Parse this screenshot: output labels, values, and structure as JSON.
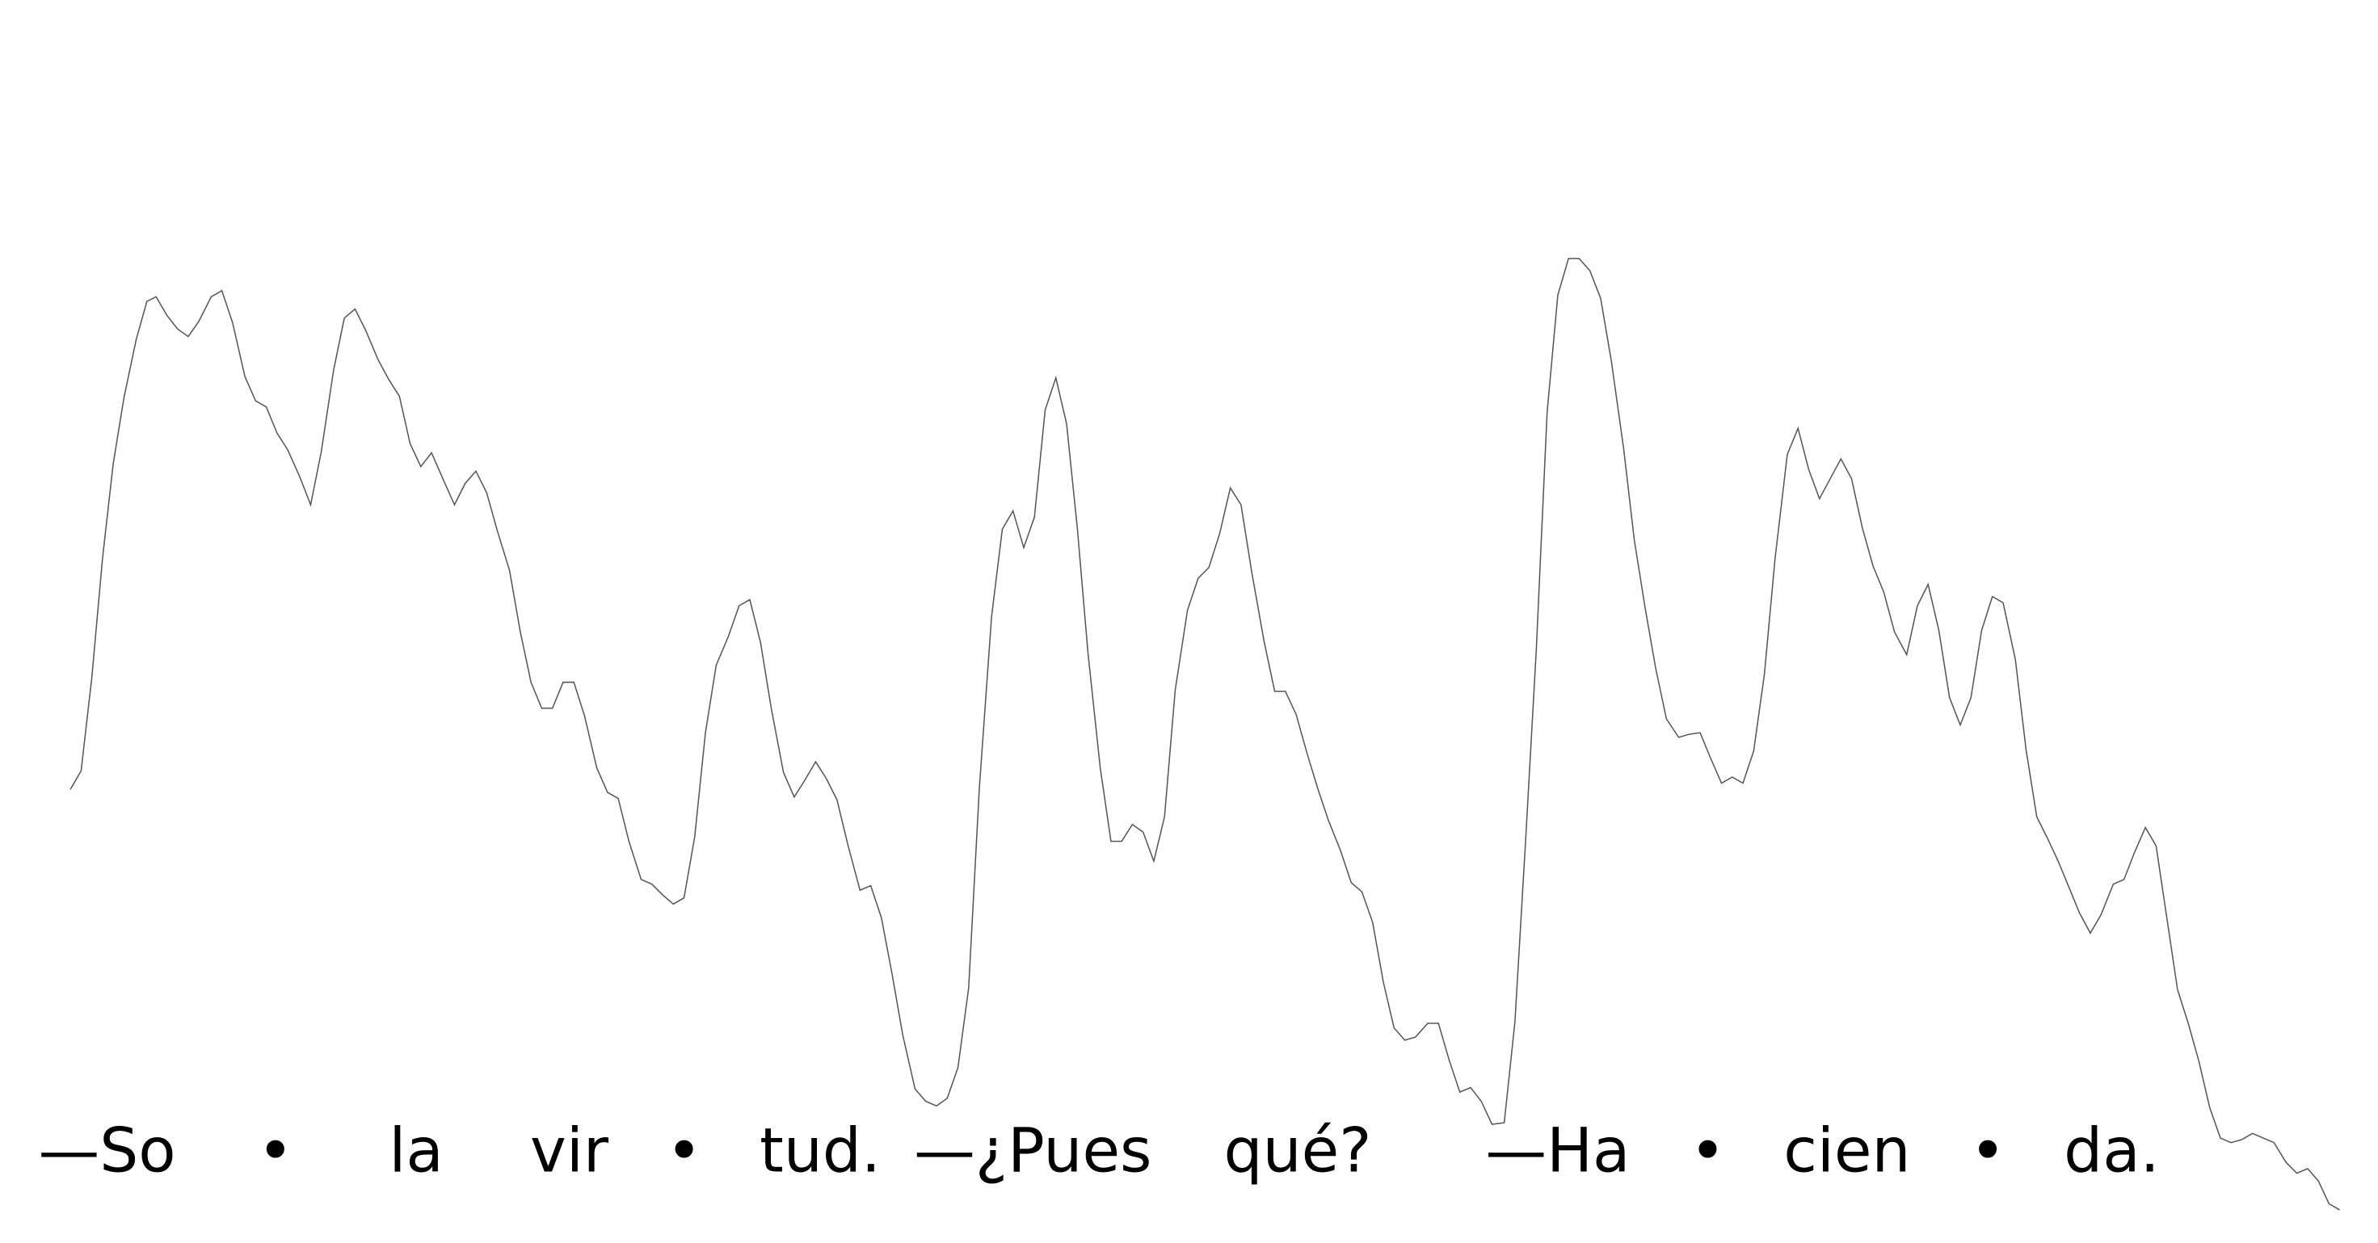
{
  "chart_data": {
    "type": "line",
    "color": "#555555",
    "syllables": [
      "—So",
      "•",
      "la",
      "vir",
      "•",
      "tud.",
      "—¿Pues",
      "qué?",
      "—Ha",
      "•",
      "cien",
      "•",
      "da."
    ],
    "x": [
      46,
      53,
      60,
      67,
      74,
      81,
      89,
      96,
      102,
      109,
      116,
      123,
      130,
      138,
      145,
      152,
      160,
      167,
      174,
      181,
      188,
      196,
      203,
      210,
      218,
      225,
      232,
      239,
      247,
      254,
      261,
      268,
      275,
      282,
      289,
      297,
      304,
      311,
      318,
      325,
      333,
      340,
      347,
      354,
      361,
      368,
      375,
      382,
      390,
      397,
      404,
      411,
      419,
      426,
      433,
      440,
      447,
      454,
      461,
      468,
      476,
      483,
      490,
      497,
      504,
      512,
      519,
      526,
      533,
      540,
      547,
      554,
      562,
      569,
      576,
      583,
      590,
      598,
      605,
      612,
      619,
      626,
      633,
      640,
      648,
      655,
      662,
      669,
      676,
      683,
      690,
      697,
      704,
      711,
      719,
      726,
      733,
      740,
      747,
      754,
      761,
      768,
      776,
      783,
      790,
      797,
      804,
      811,
      818,
      826,
      833,
      840,
      847,
      854,
      861,
      868,
      876,
      883,
      890,
      897,
      904,
      911,
      918,
      925,
      933,
      940,
      947,
      954,
      961,
      968,
      975,
      983,
      990,
      997,
      1004,
      1011,
      1018,
      1025,
      1032,
      1039,
      1046,
      1053,
      1061,
      1068,
      1075,
      1082,
      1089,
      1097,
      1104,
      1111,
      1118,
      1125,
      1132,
      1139,
      1146,
      1153,
      1160,
      1168,
      1175,
      1182,
      1189,
      1196,
      1203,
      1210,
      1217,
      1224,
      1231,
      1238,
      1246,
      1253,
      1260,
      1267,
      1274,
      1281,
      1288,
      1295,
      1302,
      1309,
      1317,
      1324,
      1331,
      1338,
      1345,
      1352,
      1359,
      1366,
      1373,
      1381,
      1388,
      1395,
      1402,
      1409,
      1416,
      1423,
      1430,
      1437,
      1444,
      1451,
      1458,
      1465,
      1472,
      1479,
      1486,
      1494,
      1501,
      1508,
      1515,
      1522,
      1529
    ],
    "values": [
      284,
      296,
      357,
      435,
      497,
      540,
      578,
      603,
      606,
      594,
      585,
      580,
      590,
      606,
      610,
      589,
      554,
      538,
      534,
      517,
      506,
      488,
      470,
      505,
      558,
      592,
      598,
      584,
      565,
      552,
      541,
      510,
      495,
      504,
      488,
      470,
      484,
      492,
      478,
      453,
      427,
      387,
      354,
      337,
      337,
      354,
      354,
      332,
      298,
      282,
      278,
      250,
      225,
      222,
      215,
      209,
      213,
      253,
      321,
      365,
      384,
      404,
      408,
      380,
      337,
      295,
      279,
      290,
      302,
      291,
      277,
      248,
      218,
      221,
      200,
      163,
      123,
      88,
      80,
      77,
      82,
      102,
      154,
      285,
      397,
      454,
      466,
      442,
      462,
      532,
      553,
      523,
      455,
      373,
      298,
      250,
      250,
      261,
      256,
      237,
      266,
      349,
      401,
      422,
      429,
      451,
      481,
      470,
      426,
      381,
      348,
      348,
      333,
      308,
      285,
      264,
      244,
      223,
      217,
      197,
      158,
      128,
      120,
      122,
      131,
      131,
      107,
      86,
      89,
      80,
      65,
      66,
      132,
      251,
      376,
      530,
      607,
      631,
      631,
      623,
      605,
      564,
      507,
      447,
      403,
      363,
      330,
      318,
      320,
      321,
      304,
      288,
      292,
      288,
      309,
      359,
      435,
      503,
      520,
      493,
      474,
      487,
      500,
      487,
      455,
      430,
      413,
      387,
      372,
      404,
      418,
      388,
      344,
      326,
      344,
      388,
      410,
      406,
      369,
      310,
      266,
      252,
      237,
      220,
      203,
      190,
      202,
      222,
      225,
      243,
      259,
      247,
      200,
      153,
      131,
      106,
      76,
      56,
      53,
      55,
      59,
      56,
      53,
      40,
      33,
      36,
      28,
      13,
      9
    ]
  }
}
